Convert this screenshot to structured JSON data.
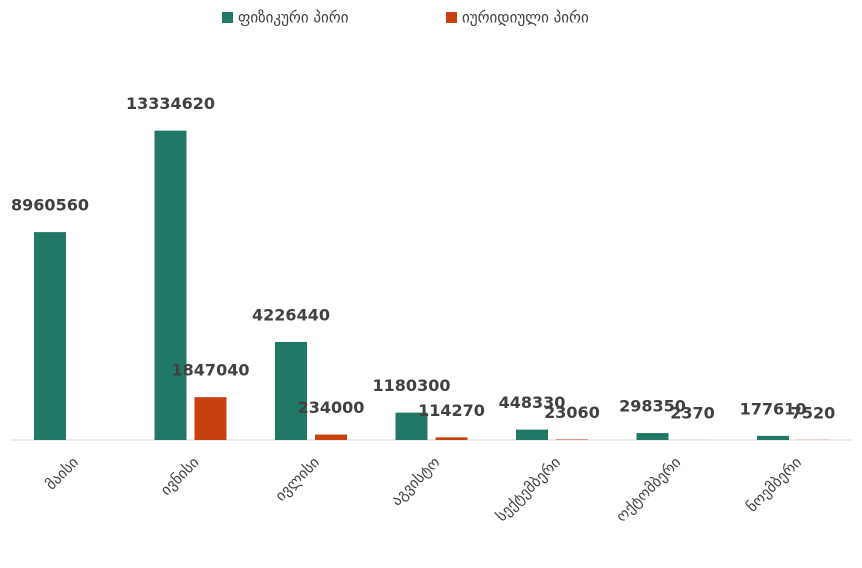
{
  "chart_data": {
    "type": "bar",
    "categories": [
      "მაისი",
      "ივნისი",
      "ივლისი",
      "აგვისტო",
      "სექტემბერი",
      "ოქტომბერი",
      "ნოემბერი"
    ],
    "series": [
      {
        "name": "ფიზიკური პირი",
        "color": "#217867",
        "values": [
          8960560,
          13334620,
          4226440,
          1180300,
          448330,
          298350,
          177610
        ]
      },
      {
        "name": "იურიდიული პირი",
        "color": "#c9400f",
        "values": [
          null,
          1847040,
          234000,
          114270,
          23060,
          2370,
          7520
        ]
      }
    ],
    "ylim": [
      0,
      15000000
    ],
    "legend": "top"
  }
}
